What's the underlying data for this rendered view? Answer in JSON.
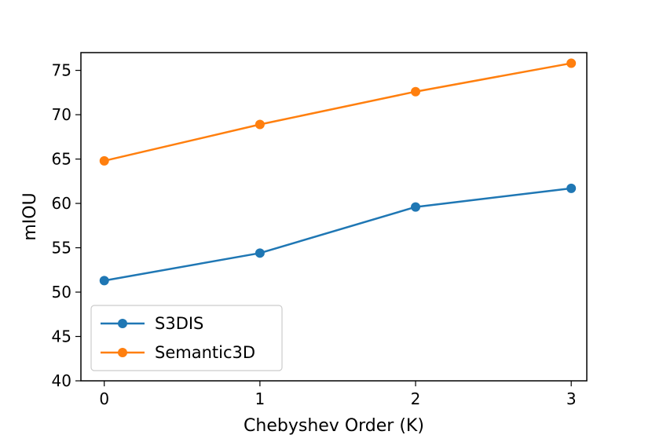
{
  "chart_data": {
    "type": "line",
    "title": "",
    "xlabel": "Chebyshev Order (K)",
    "ylabel": "mIOU",
    "x": [
      0,
      1,
      2,
      3
    ],
    "xticks": [
      "0",
      "1",
      "2",
      "3"
    ],
    "yticks": [
      "40",
      "45",
      "50",
      "55",
      "60",
      "65",
      "70",
      "75"
    ],
    "xlim": [
      -0.15,
      3.1
    ],
    "ylim": [
      40,
      77
    ],
    "grid": false,
    "legend_position": "lower-left",
    "series": [
      {
        "name": "S3DIS",
        "color": "#1f77b4",
        "values": [
          51.3,
          54.4,
          59.6,
          61.7
        ]
      },
      {
        "name": "Semantic3D",
        "color": "#ff7f0e",
        "values": [
          64.8,
          68.9,
          72.6,
          75.8
        ]
      }
    ]
  }
}
